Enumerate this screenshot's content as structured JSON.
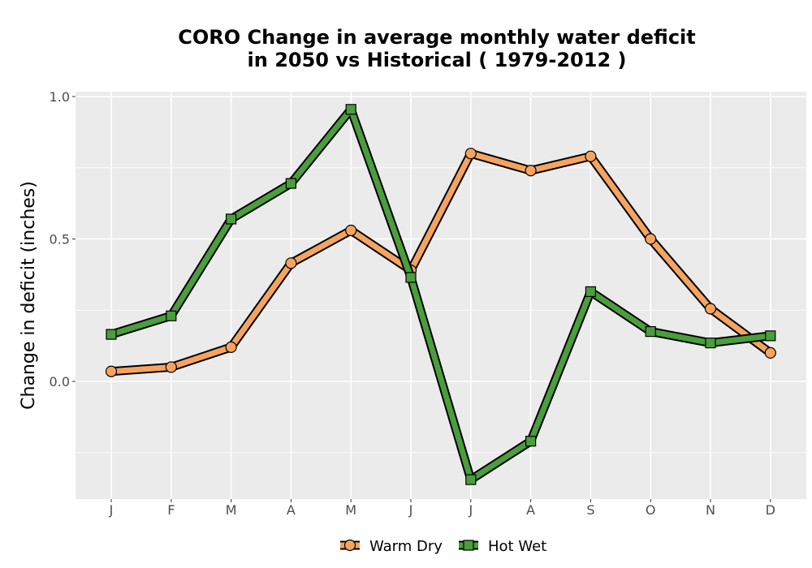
{
  "chart_data": {
    "type": "line",
    "title_line1": "CORO  Change in average monthly water deficit",
    "title_line2": "in 2050 vs Historical ( 1979-2012 )",
    "xlabel": "",
    "ylabel": "Change in deficit (inches)",
    "categories": [
      "J",
      "F",
      "M",
      "A",
      "M",
      "J",
      "J",
      "A",
      "S",
      "O",
      "N",
      "D"
    ],
    "ylim": [
      -0.41,
      1.01
    ],
    "yticks": [
      0.0,
      0.5,
      1.0
    ],
    "ytick_labels": [
      "0.0",
      "0.5",
      "1.0"
    ],
    "grid": true,
    "legend_position": "bottom",
    "series": [
      {
        "name": "Warm Dry",
        "marker": "circle",
        "color": "#F4A460",
        "values": [
          0.035,
          0.05,
          0.12,
          0.415,
          0.53,
          0.39,
          0.8,
          0.74,
          0.79,
          0.5,
          0.255,
          0.1
        ]
      },
      {
        "name": "Hot Wet",
        "marker": "square",
        "color": "#4A9E3C",
        "values": [
          0.165,
          0.23,
          0.57,
          0.695,
          0.955,
          0.365,
          -0.345,
          -0.21,
          0.315,
          0.175,
          0.135,
          0.16
        ]
      }
    ]
  }
}
